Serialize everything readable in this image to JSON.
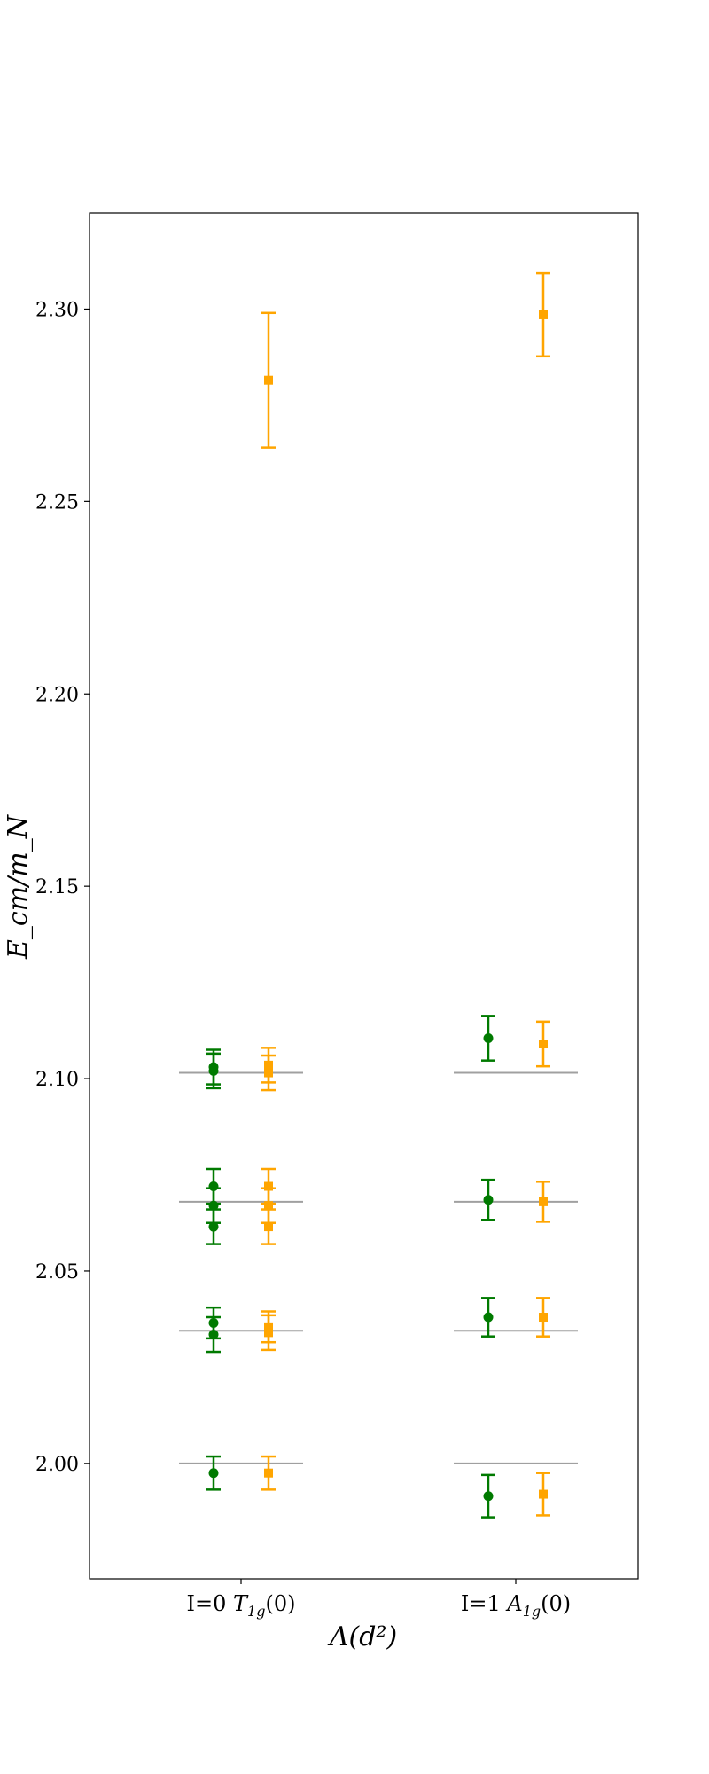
{
  "chart_data": {
    "type": "scatter",
    "title": "",
    "xlabel": "Λ(d²)",
    "ylabel": "E_cm/m_N",
    "categories": [
      "I=0 T_1g(0)",
      "I=1 A_1g(0)"
    ],
    "category_labels": [
      {
        "prefix": "I=0 ",
        "main": "T",
        "sub": "1g",
        "suffix": "(0)"
      },
      {
        "prefix": "I=1 ",
        "main": "A",
        "sub": "1g",
        "suffix": "(0)"
      }
    ],
    "ylim": [
      1.97,
      2.325
    ],
    "yticks": [
      2.0,
      2.05,
      2.1,
      2.15,
      2.2,
      2.25,
      2.3
    ],
    "ytick_labels": [
      "2.00",
      "2.05",
      "2.10",
      "2.15",
      "2.20",
      "2.25",
      "2.30"
    ],
    "grid": false,
    "reference_levels": [
      {
        "category": 0,
        "values": [
          2.0,
          2.0345,
          2.068,
          2.1015
        ]
      },
      {
        "category": 1,
        "values": [
          2.0,
          2.0345,
          2.068,
          2.1015
        ]
      }
    ],
    "series": [
      {
        "color": "#007a00",
        "marker": "circle",
        "points": [
          {
            "category": 0,
            "y": 1.9975,
            "err": 0.0043
          },
          {
            "category": 0,
            "y": 2.0335,
            "err": 0.0045
          },
          {
            "category": 0,
            "y": 2.0365,
            "err": 0.004
          },
          {
            "category": 0,
            "y": 2.0615,
            "err": 0.0045
          },
          {
            "category": 0,
            "y": 2.067,
            "err": 0.0045
          },
          {
            "category": 0,
            "y": 2.072,
            "err": 0.0045
          },
          {
            "category": 0,
            "y": 2.102,
            "err": 0.0045
          },
          {
            "category": 0,
            "y": 2.103,
            "err": 0.0045
          },
          {
            "category": 1,
            "y": 1.9915,
            "err": 0.0055
          },
          {
            "category": 1,
            "y": 2.038,
            "err": 0.005
          },
          {
            "category": 1,
            "y": 2.0685,
            "err": 0.0052
          },
          {
            "category": 1,
            "y": 2.1105,
            "err": 0.0058
          }
        ]
      },
      {
        "color": "#ffa500",
        "marker": "square",
        "points": [
          {
            "category": 0,
            "y": 1.9975,
            "err": 0.0043
          },
          {
            "category": 0,
            "y": 2.034,
            "err": 0.0045
          },
          {
            "category": 0,
            "y": 2.0355,
            "err": 0.004
          },
          {
            "category": 0,
            "y": 2.0615,
            "err": 0.0045
          },
          {
            "category": 0,
            "y": 2.067,
            "err": 0.0045
          },
          {
            "category": 0,
            "y": 2.072,
            "err": 0.0045
          },
          {
            "category": 0,
            "y": 2.1015,
            "err": 0.0045
          },
          {
            "category": 0,
            "y": 2.1035,
            "err": 0.0045
          },
          {
            "category": 0,
            "y": 2.2815,
            "err": 0.0175
          },
          {
            "category": 1,
            "y": 1.992,
            "err": 0.0055
          },
          {
            "category": 1,
            "y": 2.038,
            "err": 0.005
          },
          {
            "category": 1,
            "y": 2.068,
            "err": 0.0052
          },
          {
            "category": 1,
            "y": 2.109,
            "err": 0.0058
          },
          {
            "category": 1,
            "y": 2.2985,
            "err": 0.0108
          }
        ]
      }
    ]
  }
}
